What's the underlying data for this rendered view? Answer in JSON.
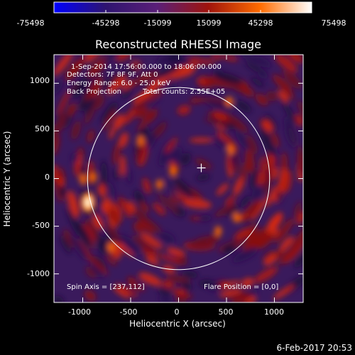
{
  "chart_data": {
    "type": "heatmap",
    "title": "Reconstructed RHESSI Image",
    "xlabel": "Heliocentric X (arcsec)",
    "ylabel": "Heliocentric Y (arcsec)",
    "xlim": [
      -1300,
      1300
    ],
    "ylim": [
      -1300,
      1300
    ],
    "x_ticks": [
      -1000,
      -500,
      0,
      500,
      1000
    ],
    "y_ticks": [
      -1000,
      -500,
      0,
      500,
      1000
    ],
    "colorbar": {
      "range": [
        -75498,
        75498
      ],
      "tick_labels": [
        "-75498",
        "-45298",
        "-15099",
        "15099",
        "45298",
        "75498"
      ],
      "colors": [
        "#0000ff",
        "#2e1470",
        "#5a1f78",
        "#a0140c",
        "#ff6c00",
        "#ffffff"
      ]
    },
    "annotations": {
      "time": "1-Sep-2014 17:56:00.000 to 18:06:00.000",
      "detectors": "Detectors: 7F 8F 9F, Att 0",
      "energy": "Energy Range: 6.0 - 25.0 keV",
      "method": "Back Projection",
      "counts": "Total counts: 2.55E+05",
      "spin_axis": "Spin Axis = [237,112]",
      "flare_position": "Flare Position = [0,0]"
    },
    "solar_limb_radius_arcsec": 950,
    "spin_axis_xy": [
      237,
      112
    ],
    "bright_source": {
      "x": -945,
      "y": -250,
      "value": 75498
    }
  },
  "footer_date": "6-Feb-2017 20:53"
}
